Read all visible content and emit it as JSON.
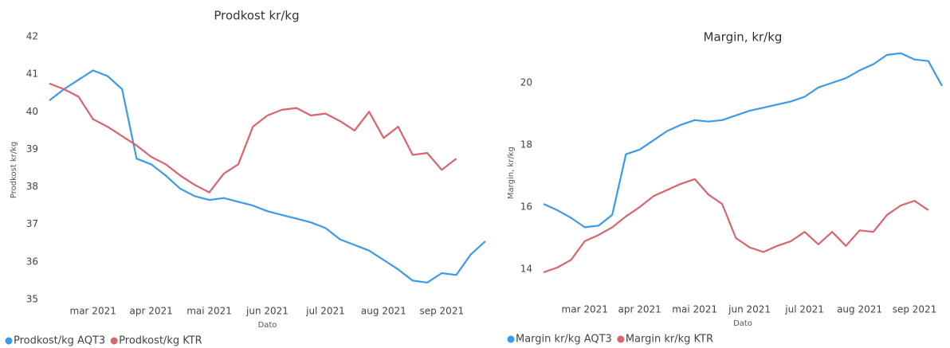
{
  "chart_data": [
    {
      "type": "line",
      "title": "Prodkost kr/kg",
      "x_label": "Dato",
      "y_label": "Prodkost kr/kg",
      "categories": [
        null,
        null,
        null,
        "mar 2021",
        null,
        null,
        null,
        "apr 2021",
        null,
        null,
        null,
        "mai 2021",
        null,
        null,
        null,
        "jun 2021",
        null,
        null,
        null,
        "jul 2021",
        null,
        null,
        null,
        "aug 2021",
        null,
        null,
        null,
        "sep 2021",
        null,
        null,
        null
      ],
      "series": [
        {
          "name": "Prodkost/kg AQT3",
          "color": "#3b9be8",
          "values": [
            40.3,
            40.6,
            40.85,
            41.1,
            40.95,
            40.6,
            38.75,
            38.6,
            38.3,
            37.95,
            37.75,
            37.65,
            37.7,
            37.6,
            37.5,
            37.35,
            37.25,
            37.15,
            37.05,
            36.9,
            36.6,
            36.45,
            36.3,
            36.05,
            35.8,
            35.5,
            35.45,
            35.7,
            35.65,
            36.2,
            36.55
          ]
        },
        {
          "name": "Prodkost/kg KTR",
          "color": "#d9646e",
          "values": [
            40.75,
            40.6,
            40.4,
            39.8,
            39.6,
            39.35,
            39.1,
            38.8,
            38.6,
            38.3,
            38.05,
            37.85,
            38.35,
            38.6,
            39.6,
            39.9,
            40.05,
            40.1,
            39.9,
            39.95,
            39.75,
            39.5,
            40.0,
            39.3,
            39.6,
            38.85,
            38.9,
            38.45,
            38.75,
            null,
            null
          ]
        }
      ],
      "ylim": [
        34.8,
        42.1
      ],
      "yticks": [
        35,
        36,
        37,
        38,
        39,
        40,
        41,
        42
      ],
      "legend": "bottom"
    },
    {
      "type": "line",
      "title": "Margin, kr/kg",
      "x_label": "Dato",
      "y_label": "Margin, kr/kg",
      "categories": [
        null,
        null,
        null,
        "mar 2021",
        null,
        null,
        null,
        "apr 2021",
        null,
        null,
        null,
        "mai 2021",
        null,
        null,
        null,
        "jun 2021",
        null,
        null,
        null,
        "jul 2021",
        null,
        null,
        null,
        "aug 2021",
        null,
        null,
        null,
        "sep 2021",
        null,
        null
      ],
      "series": [
        {
          "name": "Margin kr/kg AQT3",
          "color": "#3b9be8",
          "values": [
            16.1,
            15.9,
            15.65,
            15.35,
            15.4,
            15.75,
            17.7,
            17.85,
            18.15,
            18.45,
            18.65,
            18.8,
            18.75,
            18.8,
            18.95,
            19.1,
            19.2,
            19.3,
            19.4,
            19.55,
            19.85,
            20.0,
            20.15,
            20.4,
            20.6,
            20.9,
            20.95,
            20.75,
            20.7,
            19.9
          ]
        },
        {
          "name": "Margin kr/kg KTR",
          "color": "#d9646e",
          "values": [
            13.9,
            14.05,
            14.3,
            14.9,
            15.1,
            15.35,
            15.7,
            16.0,
            16.35,
            16.55,
            16.75,
            16.9,
            16.4,
            16.1,
            15.0,
            14.7,
            14.55,
            14.75,
            14.9,
            15.2,
            14.8,
            15.2,
            14.75,
            15.25,
            15.2,
            15.75,
            16.05,
            16.2,
            15.9,
            null
          ]
        }
      ],
      "ylim": [
        13,
        21.2
      ],
      "yticks": [
        14,
        16,
        18,
        20
      ],
      "legend": "bottom"
    }
  ]
}
